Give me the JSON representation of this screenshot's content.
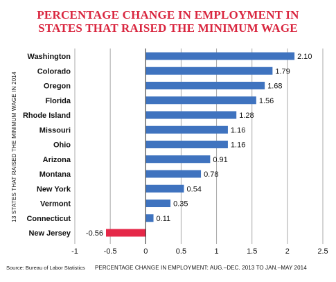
{
  "chart_data": {
    "type": "bar",
    "orientation": "horizontal",
    "title_lines": [
      "PERCENTAGE CHANGE IN EMPLOYMENT IN",
      "STATES THAT RAISED THE MINIMUM WAGE"
    ],
    "categories": [
      "Washington",
      "Colorado",
      "Oregon",
      "Florida",
      "Rhode Island",
      "Missouri",
      "Ohio",
      "Arizona",
      "Montana",
      "New York",
      "Vermont",
      "Connecticut",
      "New Jersey"
    ],
    "values": [
      2.1,
      1.79,
      1.68,
      1.56,
      1.28,
      1.16,
      1.16,
      0.91,
      0.78,
      0.54,
      0.35,
      0.11,
      -0.56
    ],
    "value_labels": [
      "2.10",
      "1.79",
      "1.68",
      "1.56",
      "1.28",
      "1.16",
      "1.16",
      "0.91",
      "0.78",
      "0.54",
      "0.35",
      "0.11",
      "-0.56"
    ],
    "xlabel": "PERCENTAGE CHANGE IN EMPLOYMENT: AUG.–DEC. 2013 TO JAN.–MAY 2014",
    "ylabel": "13 STATES THAT RAISED THE MINIMUM WAGE IN 2014",
    "xlim": [
      -1,
      2.5
    ],
    "x_ticks": [
      -1,
      -0.5,
      0,
      0.5,
      1,
      1.5,
      2,
      2.5
    ],
    "x_tick_labels": [
      "-1",
      "-0.5",
      "0",
      "0.5",
      "1",
      "1.5",
      "2",
      "2.5"
    ],
    "grid": true,
    "source": "Source: Bureau of Labor Statistics",
    "colors": {
      "positive": "#3f73bf",
      "negative": "#e52848",
      "grid": "#a8a8a8",
      "title": "#d9263f"
    }
  }
}
